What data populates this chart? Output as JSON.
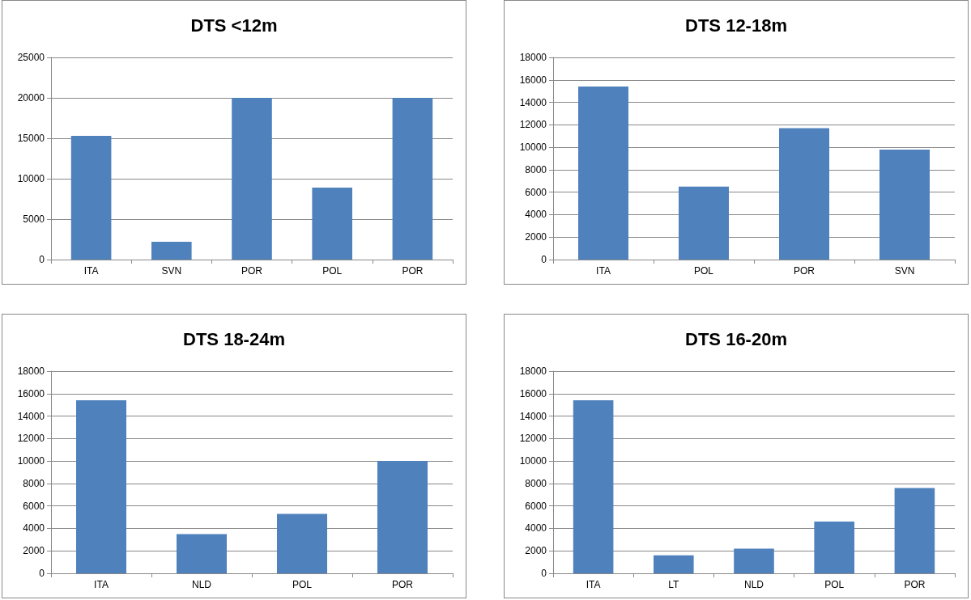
{
  "chart_data": [
    {
      "type": "bar",
      "title": "DTS <12m",
      "categories": [
        "ITA",
        "SVN",
        "POR",
        "POL",
        "POR"
      ],
      "values": [
        15300,
        2200,
        20000,
        8900,
        20000
      ],
      "color": "#4f81bd",
      "ylim": [
        0,
        25000
      ],
      "yticks": [
        0,
        5000,
        10000,
        15000,
        20000,
        25000
      ],
      "grid": "y"
    },
    {
      "type": "bar",
      "title": "DTS 12-18m",
      "categories": [
        "ITA",
        "POL",
        "POR",
        "SVN"
      ],
      "values": [
        15400,
        6500,
        11700,
        9800
      ],
      "color": "#4f81bd",
      "ylim": [
        0,
        18000
      ],
      "yticks": [
        0,
        2000,
        4000,
        6000,
        8000,
        10000,
        12000,
        14000,
        16000,
        18000
      ],
      "grid": "y"
    },
    {
      "type": "bar",
      "title": "DTS 18-24m",
      "categories": [
        "ITA",
        "NLD",
        "POL",
        "POR"
      ],
      "values": [
        15400,
        3500,
        5300,
        10000
      ],
      "color": "#4f81bd",
      "ylim": [
        0,
        18000
      ],
      "yticks": [
        0,
        2000,
        4000,
        6000,
        8000,
        10000,
        12000,
        14000,
        16000,
        18000
      ],
      "grid": "y"
    },
    {
      "type": "bar",
      "title": "DTS 16-20m",
      "categories": [
        "ITA",
        "LT",
        "NLD",
        "POL",
        "POR"
      ],
      "values": [
        15400,
        1600,
        2200,
        4600,
        7600
      ],
      "color": "#4f81bd",
      "ylim": [
        0,
        18000
      ],
      "yticks": [
        0,
        2000,
        4000,
        6000,
        8000,
        10000,
        12000,
        14000,
        16000,
        18000
      ],
      "grid": "y"
    }
  ]
}
